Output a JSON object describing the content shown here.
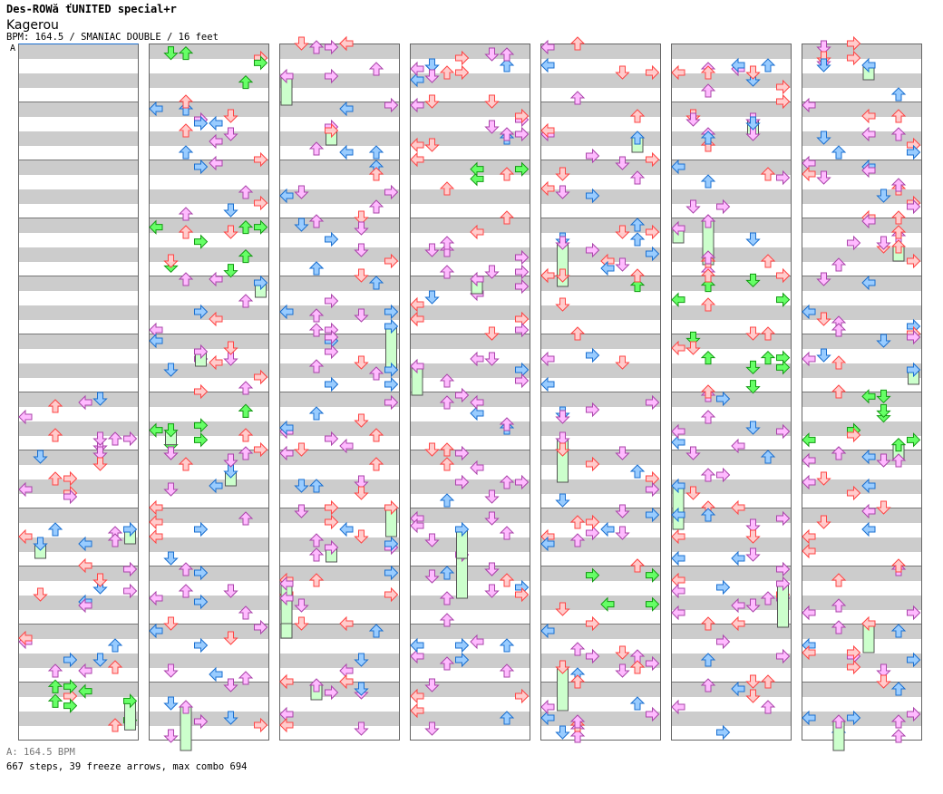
{
  "header": {
    "title": "Des-ROWă ťUNITED special+r",
    "song": "Kagerou",
    "info": "BPM: 164.5 / SMANIAC DOUBLE / 16 feet",
    "section_label": "A"
  },
  "footer": {
    "bpm_line": "A: 164.5 BPM",
    "stats": "667 steps, 39 freeze arrows, max combo 694"
  },
  "chart": {
    "columns": 7,
    "measures_per_column": 12,
    "lanes": 8,
    "steps": 667,
    "freeze_arrows": 39,
    "colors": {
      "quarter": "#ff4444",
      "eighth": "#3399ff",
      "sixteenth": "#ee77ee",
      "triplet": "#22dd22",
      "freeze": "#ccffcc",
      "quarter_fill": "#ffcccc",
      "eighth_fill": "#99ccff",
      "sixteenth_fill": "#ffbbff",
      "triplet_fill": "#66ff66"
    }
  }
}
